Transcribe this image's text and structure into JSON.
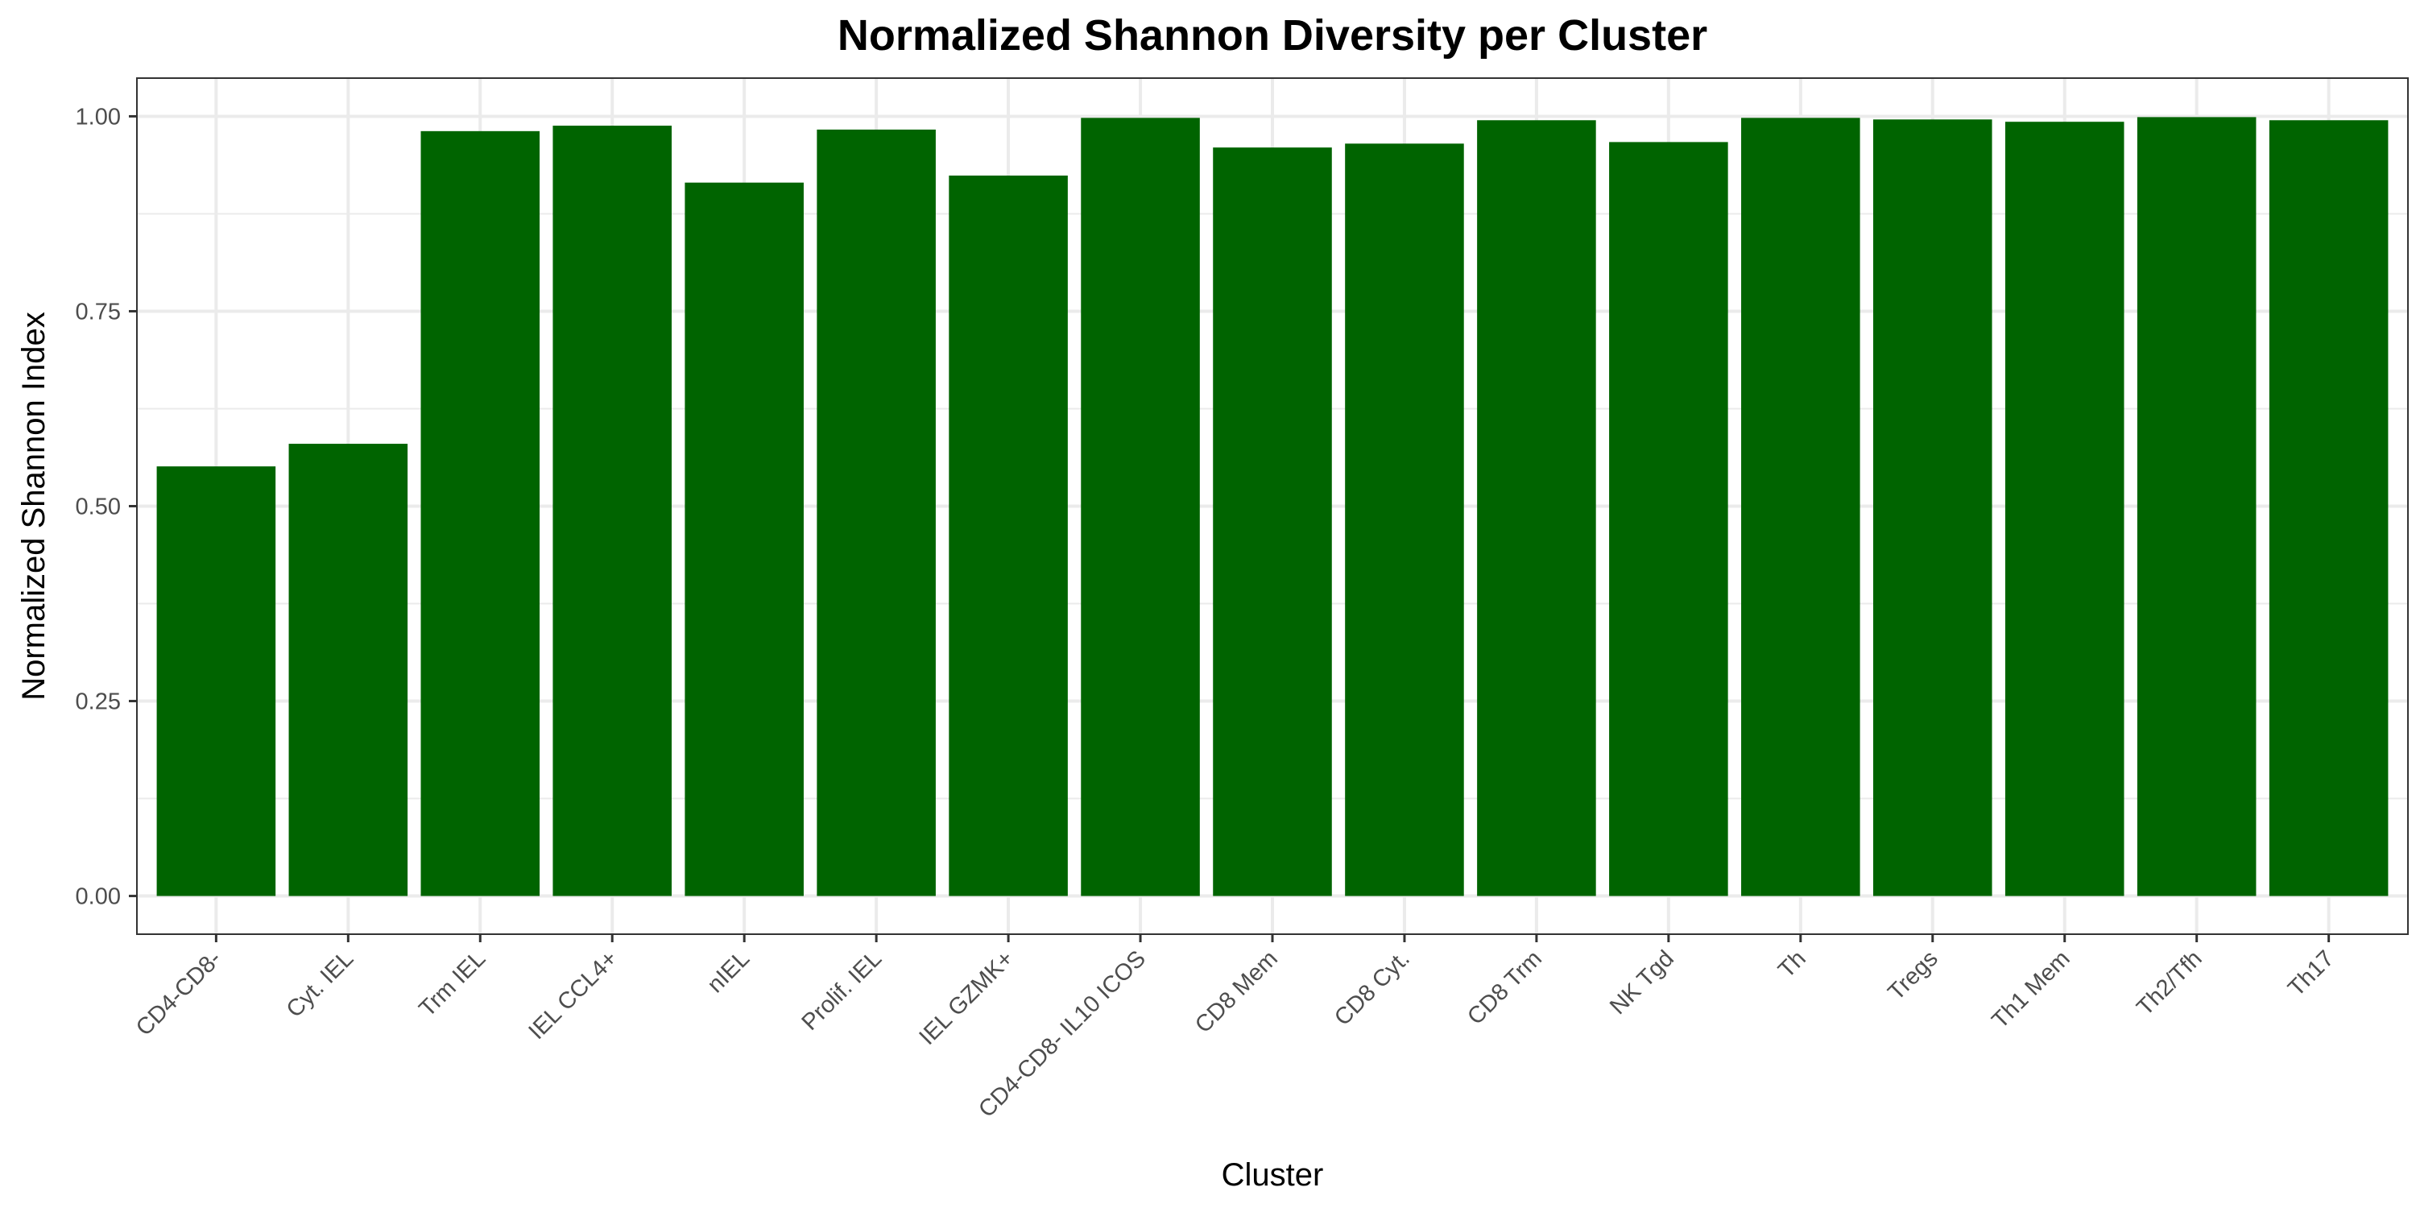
{
  "chart_data": {
    "type": "bar",
    "title": "Normalized Shannon Diversity per Cluster",
    "xlabel": "Cluster",
    "ylabel": "Normalized Shannon Index",
    "categories": [
      "CD4-CD8-",
      "Cyt. IEL",
      "Trm IEL",
      "IEL CCL4+",
      "nIEL",
      "Prolif. IEL",
      "IEL GZMK+",
      "CD4-CD8- IL10 ICOS",
      "CD8 Mem",
      "CD8 Cyt.",
      "CD8 Trm",
      "NK Tgd",
      "Th",
      "Tregs",
      "Th1 Mem",
      "Th2/Tfh",
      "Th17"
    ],
    "values": [
      0.551,
      0.58,
      0.981,
      0.988,
      0.915,
      0.983,
      0.924,
      0.998,
      0.96,
      0.965,
      0.995,
      0.967,
      0.998,
      0.996,
      0.993,
      0.999,
      0.995
    ],
    "ylim": [
      -0.049,
      1.049
    ],
    "yticks": [
      0.0,
      0.25,
      0.5,
      0.75,
      1.0
    ],
    "ytick_labels": [
      "0.00",
      "0.25",
      "0.50",
      "0.75",
      "1.00"
    ],
    "grid": true,
    "legend": "none",
    "bar_color": "#006400",
    "grid_color": "#ebebeb",
    "panel_border_color": "#333333"
  }
}
